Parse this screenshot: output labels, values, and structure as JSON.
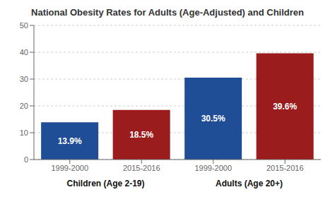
{
  "chart_data": {
    "type": "bar",
    "title": "National Obesity Rates for Adults (Age-Adjusted) and Children",
    "categories": [
      "1999-2000",
      "2015-2016",
      "1999-2000",
      "2015-2016"
    ],
    "values": [
      13.9,
      18.5,
      30.5,
      39.6
    ],
    "value_labels": [
      "13.9%",
      "18.5%",
      "30.5%",
      "39.6%"
    ],
    "colors": [
      "#1f4e96",
      "#9b1c1c",
      "#1f4e96",
      "#9b1c1c"
    ],
    "ylim": [
      0,
      50
    ],
    "yticks": [
      0,
      10,
      20,
      30,
      40,
      50
    ],
    "grid": true,
    "data_labels": true,
    "annotations": [
      "Children (Age 2-19)",
      "Adults (Age 20+)"
    ]
  }
}
